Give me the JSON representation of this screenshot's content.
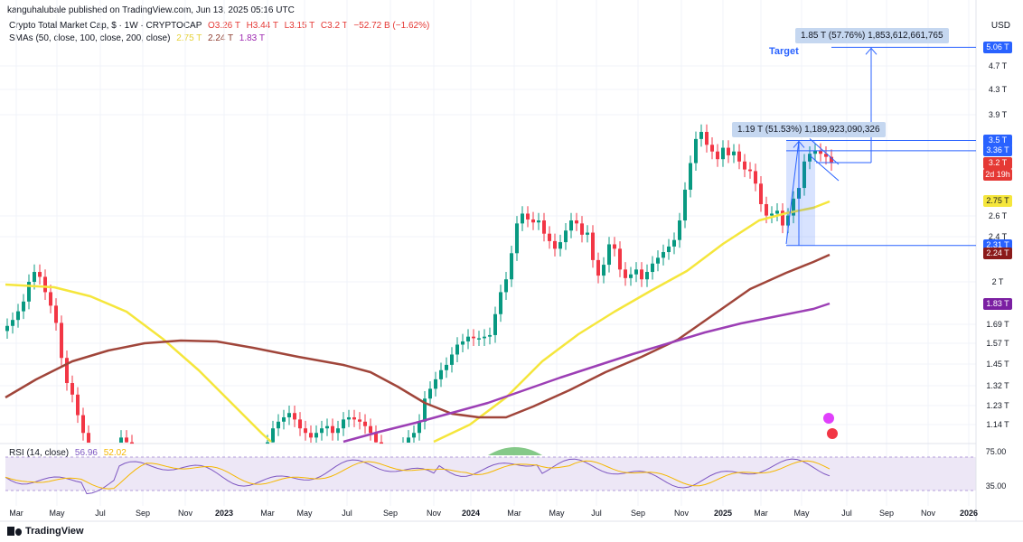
{
  "publisher": "kanguhalubale published on TradingView.com, Jun 13, 2025 05:16 UTC",
  "legend": {
    "symbol": "Crypto Total Market Cap, $ · 1W · CRYPTOCAP",
    "open": "O3.26 T",
    "high": "H3.44 T",
    "low": "L3.15 T",
    "close": "C3.2 T",
    "change": "−52.72 B (−1.62%)",
    "sma_title": "SMAs (50, close, 100, close, 200, close)",
    "sma50": "2.75 T",
    "sma100": "2.24 T",
    "sma200": "1.83 T",
    "rsi_title": "RSI (14, close)",
    "rsi_value": "56.96",
    "rsi_ma": "52.02"
  },
  "currency": "USD",
  "annotations": {
    "target_label": "Target",
    "measure_top": "1.85 T (57.76%) 1,853,612,661,765",
    "measure_mid": "1.19 T (51.53%) 1,189,923,090,326"
  },
  "price_labels": [
    {
      "value": "5.06 T",
      "color": "#2962ff"
    },
    {
      "value": "3.5 T",
      "color": "#2962ff"
    },
    {
      "value": "3.36 T",
      "color": "#2962ff"
    },
    {
      "value": "3.2 T",
      "color": "#e53935"
    },
    {
      "value": "2d 19h",
      "color": "#e53935"
    },
    {
      "value": "2.75 T",
      "color": "#f5e63c"
    },
    {
      "value": "2.31 T",
      "color": "#2962ff"
    },
    {
      "value": "2.24 T",
      "color": "#8b1a1a"
    },
    {
      "value": "1.83 T",
      "color": "#7b1fa2"
    }
  ],
  "brand": "TradingView",
  "chart_data": {
    "type": "candlestick",
    "title": "Crypto Total Market Cap, $ · 1W · CRYPTOCAP",
    "x_ticks": [
      "Mar",
      "May",
      "Jul",
      "Sep",
      "Nov",
      "2023",
      "Mar",
      "May",
      "Jul",
      "Sep",
      "Nov",
      "2024",
      "Mar",
      "May",
      "Jul",
      "Sep",
      "Nov",
      "2025",
      "Mar",
      "May",
      "Jul",
      "Sep",
      "Nov",
      "2026"
    ],
    "y_ticks": [
      "4.7 T",
      "4.3 T",
      "3.9 T",
      "2.6 T",
      "2.4 T",
      "2 T",
      "1.69 T",
      "1.57 T",
      "1.45 T",
      "1.32 T",
      "1.23 T",
      "1.14 T"
    ],
    "y_scale": "log",
    "last_values": {
      "open": 3.26,
      "high": 3.44,
      "low": 3.15,
      "close": 3.2
    },
    "sma": [
      {
        "name": "SMA 50",
        "value": 2.75,
        "color": "#f5e63c"
      },
      {
        "name": "SMA 100",
        "value": 2.24,
        "color": "#a0453a"
      },
      {
        "name": "SMA 200",
        "value": 1.83,
        "color": "#9c3fb5"
      }
    ],
    "rsi": {
      "ticks": [
        "75.00",
        "35.00"
      ],
      "value": 56.96,
      "ma": 52.02,
      "overbought": 70,
      "oversold": 30
    },
    "levels": {
      "target": 5.06,
      "pattern_top": 3.5,
      "pattern_mid": 3.36,
      "pattern_low": 2.31
    }
  }
}
